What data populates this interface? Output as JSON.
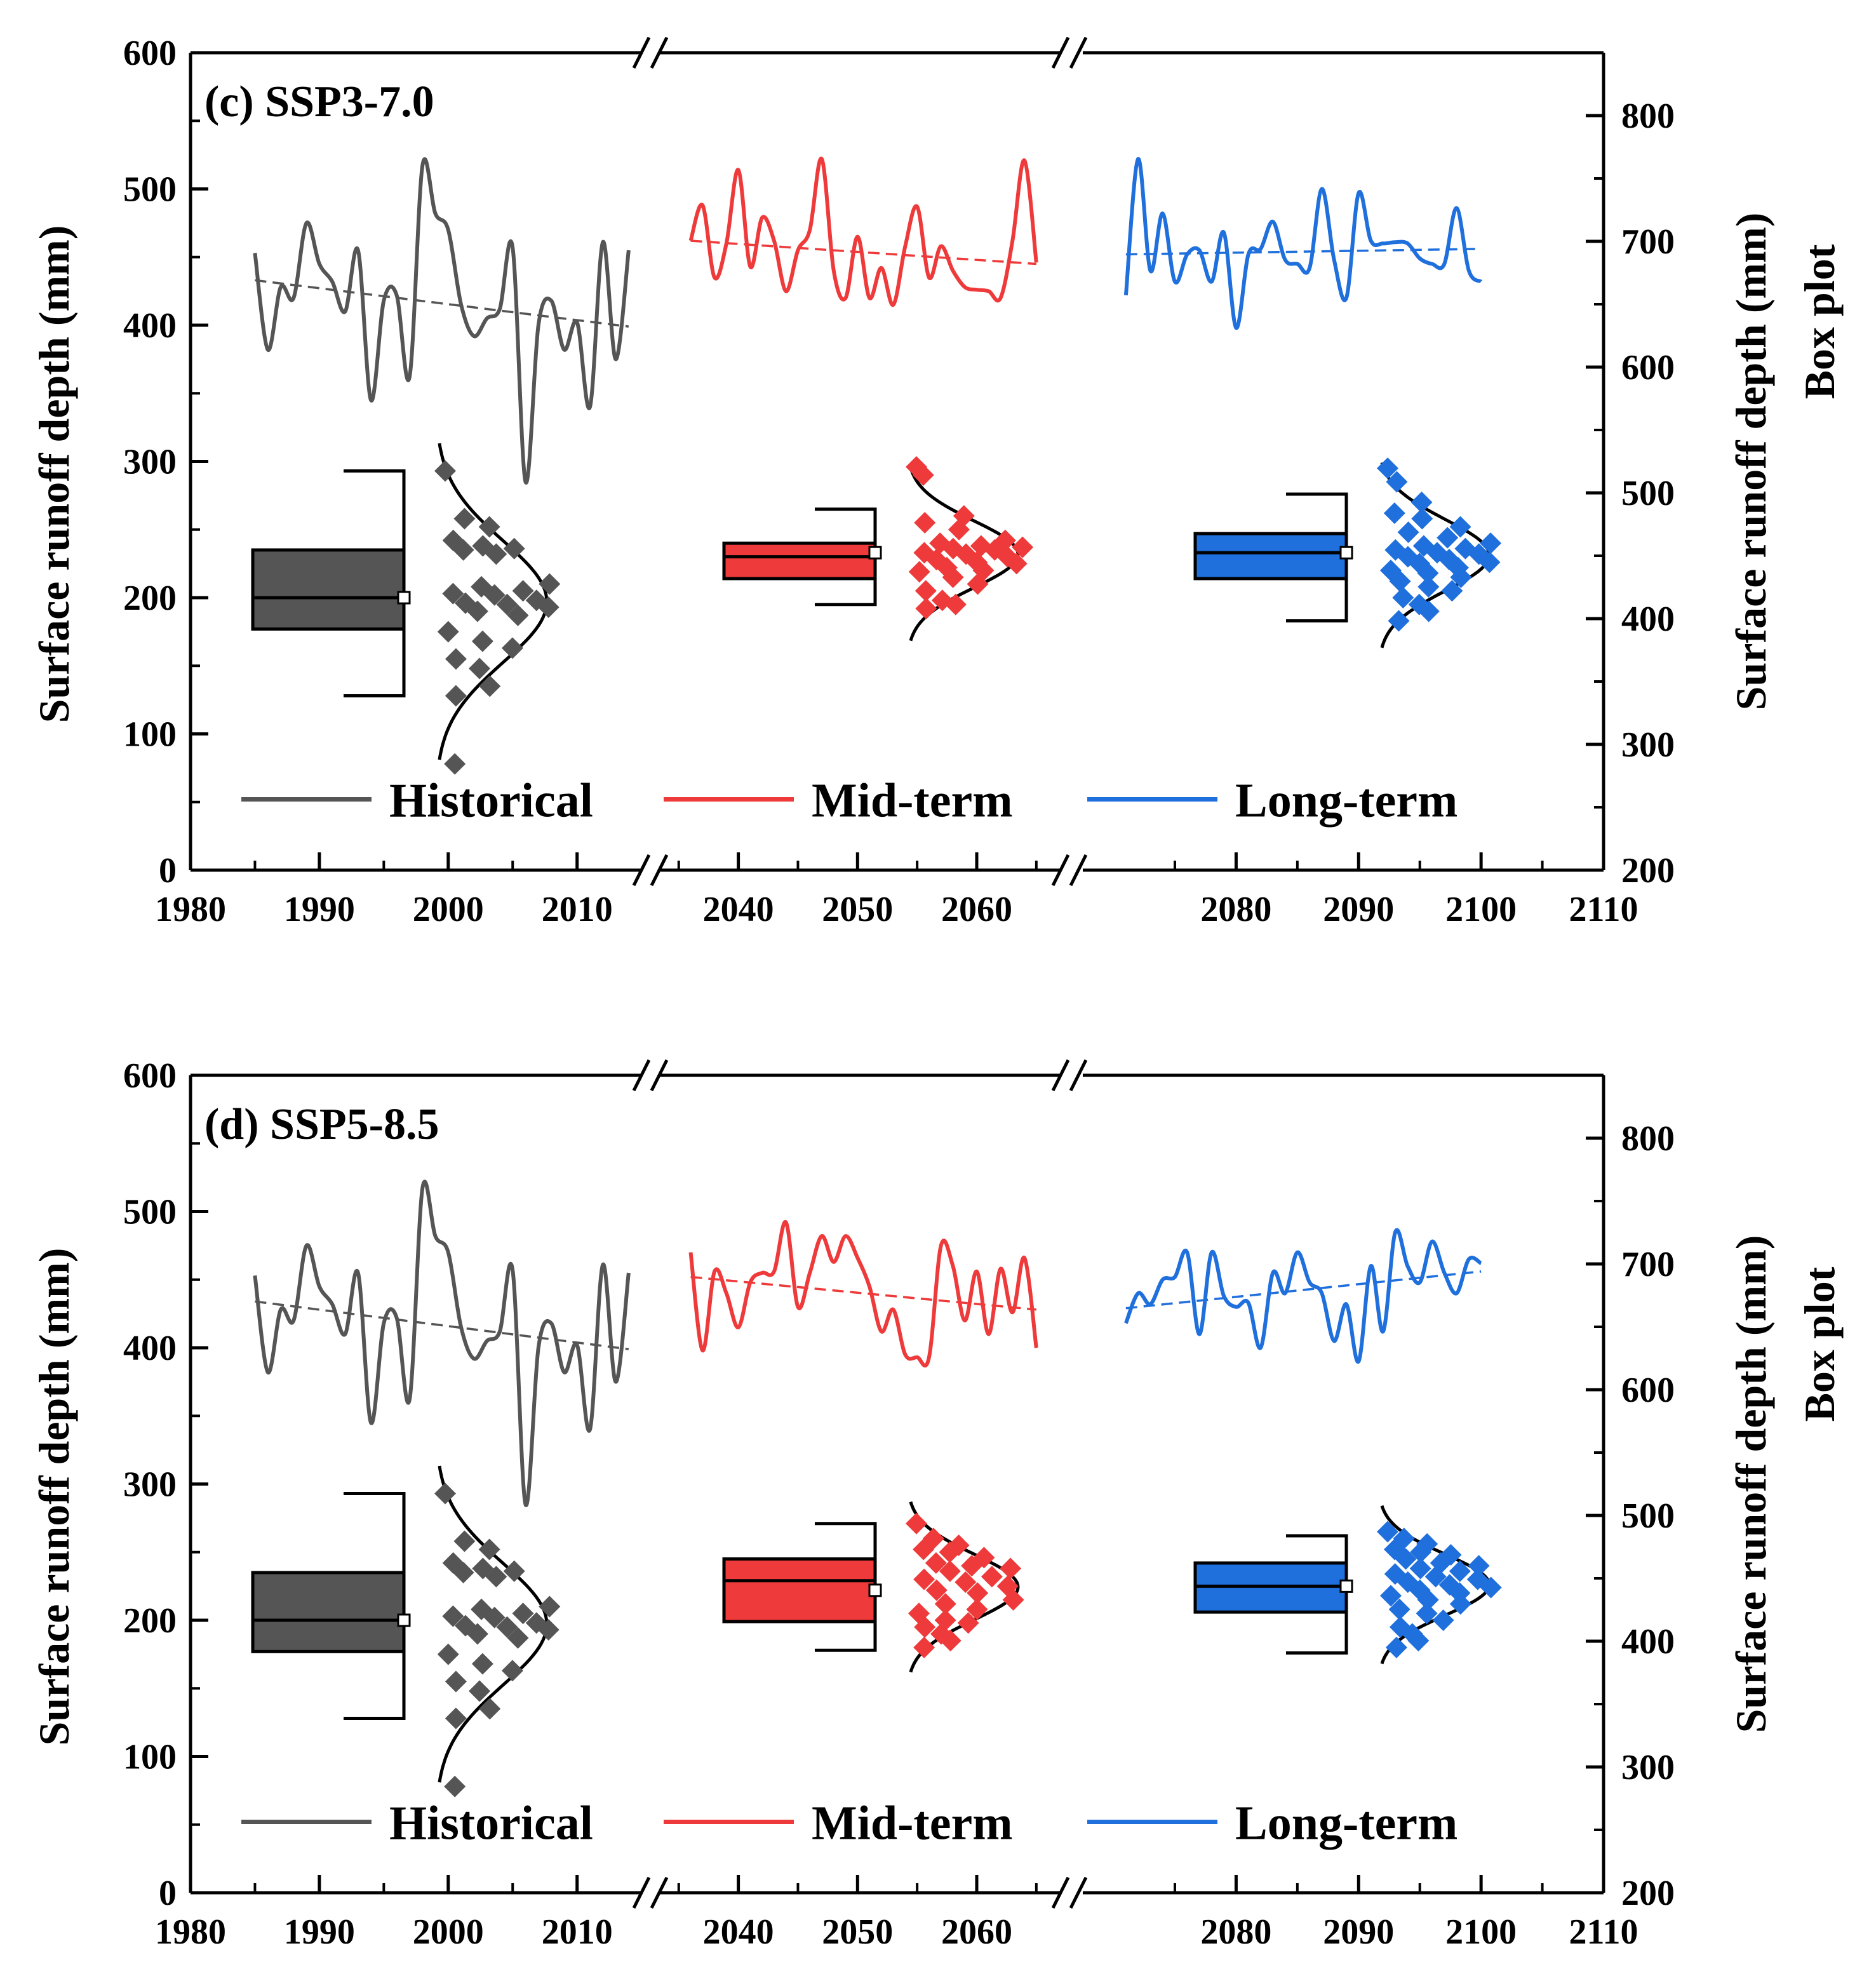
{
  "colors": {
    "Historical": "#555555",
    "Mid-term": "#EE3A3A",
    "Long-term": "#1F6FDC",
    "axis": "#000000"
  },
  "chart_data": [
    {
      "type": "line",
      "title": "(c) SSP3-7.0",
      "xlabel": "",
      "ylabel": "Surface runoff depth (mm)",
      "ylabel_right": "Surface runoff depth (mm)",
      "ylabel_right2": "Box plot",
      "ylim": [
        0,
        600
      ],
      "ylim_right": [
        200,
        850
      ],
      "y_ticks": [
        0,
        100,
        200,
        300,
        400,
        500,
        600
      ],
      "y_ticks_right": [
        200,
        300,
        400,
        500,
        600,
        700,
        800
      ],
      "x_ticks": [
        {
          "year": 1980,
          "label": "1980"
        },
        {
          "year": 1990,
          "label": "1990"
        },
        {
          "year": 2000,
          "label": "2000"
        },
        {
          "year": 2010,
          "label": "2010"
        },
        {
          "year": 2040,
          "label": "2040"
        },
        {
          "year": 2050,
          "label": "2050"
        },
        {
          "year": 2060,
          "label": "2060"
        },
        {
          "year": 2080,
          "label": "2080"
        },
        {
          "year": 2090,
          "label": "2090"
        },
        {
          "year": 2100,
          "label": "2100"
        },
        {
          "year": 2110,
          "label": "2110"
        }
      ],
      "legend": [
        "Historical",
        "Mid-term",
        "Long-term"
      ],
      "series": [
        {
          "name": "Historical",
          "x": [
            1985,
            1986,
            1987,
            1988,
            1989,
            1990,
            1991,
            1992,
            1993,
            1994,
            1995,
            1996,
            1997,
            1998,
            1999,
            2000,
            2001,
            2002,
            2003,
            2004,
            2005,
            2006,
            2007,
            2008,
            2009,
            2010,
            2011,
            2012,
            2013,
            2014
          ],
          "values": [
            453,
            382,
            428,
            420,
            475,
            445,
            432,
            410,
            455,
            345,
            418,
            422,
            362,
            517,
            482,
            470,
            415,
            392,
            405,
            412,
            457,
            285,
            400,
            418,
            382,
            402,
            340,
            461,
            375,
            455
          ],
          "trend": [
            433,
            399
          ]
        },
        {
          "name": "Mid-term",
          "x": [
            2036,
            2037,
            2038,
            2039,
            2040,
            2041,
            2042,
            2043,
            2044,
            2045,
            2046,
            2047,
            2048,
            2049,
            2050,
            2051,
            2052,
            2053,
            2054,
            2055,
            2056,
            2057,
            2058,
            2059,
            2060,
            2061,
            2062,
            2063,
            2064,
            2065
          ],
          "values": [
            462,
            488,
            435,
            460,
            514,
            443,
            479,
            462,
            425,
            455,
            470,
            522,
            440,
            420,
            465,
            420,
            442,
            415,
            458,
            487,
            435,
            458,
            440,
            428,
            426,
            425,
            420,
            462,
            521,
            446
          ],
          "trend": [
            462,
            445
          ]
        },
        {
          "name": "Long-term",
          "x": [
            2071,
            2072,
            2073,
            2074,
            2075,
            2076,
            2077,
            2078,
            2079,
            2080,
            2081,
            2082,
            2083,
            2084,
            2085,
            2086,
            2087,
            2088,
            2089,
            2090,
            2091,
            2092,
            2093,
            2094,
            2095,
            2096,
            2097,
            2098,
            2099,
            2100
          ],
          "values": [
            422,
            522,
            440,
            482,
            432,
            452,
            455,
            432,
            468,
            398,
            452,
            456,
            476,
            448,
            445,
            442,
            500,
            448,
            420,
            497,
            462,
            460,
            461,
            460,
            449,
            445,
            445,
            486,
            440,
            432
          ],
          "trend": [
            452,
            456
          ]
        }
      ],
      "box_plots": [
        {
          "name": "Historical",
          "whisker_low": 128,
          "q1": 177,
          "median": 200,
          "mean": 200,
          "q3": 235,
          "whisker_high": 293,
          "points": [
            293,
            258,
            252,
            242,
            238,
            236,
            235,
            232,
            210,
            208,
            205,
            203,
            202,
            198,
            196,
            195,
            193,
            190,
            187,
            175,
            168,
            163,
            155,
            148,
            135,
            128,
            78
          ]
        },
        {
          "name": "Mid-term",
          "whisker_low": 195,
          "q1": 214,
          "median": 230,
          "mean": 233,
          "q3": 240,
          "whisker_high": 265,
          "points": [
            296,
            290,
            260,
            255,
            250,
            242,
            240,
            238,
            237,
            236,
            235,
            233,
            232,
            230,
            228,
            226,
            225,
            222,
            220,
            219,
            215,
            210,
            205,
            198,
            195,
            192
          ]
        },
        {
          "name": "Long-term",
          "whisker_low": 183,
          "q1": 214,
          "median": 233,
          "mean": 233,
          "q3": 247,
          "whisker_high": 276,
          "points": [
            295,
            285,
            270,
            262,
            258,
            252,
            248,
            244,
            240,
            238,
            236,
            235,
            233,
            232,
            230,
            228,
            226,
            225,
            222,
            220,
            218,
            215,
            212,
            208,
            205,
            200,
            195,
            190,
            183
          ]
        }
      ]
    },
    {
      "type": "line",
      "title": "(d) SSP5-8.5",
      "xlabel": "",
      "ylabel": "Surface runoff depth (mm)",
      "ylabel_right": "Surface runoff depth (mm)",
      "ylabel_right2": "Box plot",
      "ylim": [
        0,
        600
      ],
      "ylim_right": [
        200,
        850
      ],
      "y_ticks": [
        0,
        100,
        200,
        300,
        400,
        500,
        600
      ],
      "y_ticks_right": [
        200,
        300,
        400,
        500,
        600,
        700,
        800
      ],
      "x_ticks": [
        {
          "year": 1980,
          "label": "1980"
        },
        {
          "year": 1990,
          "label": "1990"
        },
        {
          "year": 2000,
          "label": "2000"
        },
        {
          "year": 2010,
          "label": "2010"
        },
        {
          "year": 2040,
          "label": "2040"
        },
        {
          "year": 2050,
          "label": "2050"
        },
        {
          "year": 2060,
          "label": "2060"
        },
        {
          "year": 2080,
          "label": "2080"
        },
        {
          "year": 2090,
          "label": "2090"
        },
        {
          "year": 2100,
          "label": "2100"
        },
        {
          "year": 2110,
          "label": "2110"
        }
      ],
      "legend": [
        "Historical",
        "Mid-term",
        "Long-term"
      ],
      "series": [
        {
          "name": "Historical",
          "x": [
            1985,
            1986,
            1987,
            1988,
            1989,
            1990,
            1991,
            1992,
            1993,
            1994,
            1995,
            1996,
            1997,
            1998,
            1999,
            2000,
            2001,
            2002,
            2003,
            2004,
            2005,
            2006,
            2007,
            2008,
            2009,
            2010,
            2011,
            2012,
            2013,
            2014
          ],
          "values": [
            453,
            382,
            428,
            420,
            475,
            445,
            432,
            410,
            455,
            345,
            418,
            422,
            362,
            517,
            482,
            470,
            415,
            392,
            405,
            412,
            457,
            285,
            400,
            418,
            382,
            402,
            340,
            461,
            375,
            455
          ],
          "trend": [
            434,
            399
          ]
        },
        {
          "name": "Mid-term",
          "x": [
            2036,
            2037,
            2038,
            2039,
            2040,
            2041,
            2042,
            2043,
            2044,
            2045,
            2046,
            2047,
            2048,
            2049,
            2050,
            2051,
            2052,
            2053,
            2054,
            2055,
            2056,
            2057,
            2058,
            2059,
            2060,
            2061,
            2062,
            2063,
            2064,
            2065
          ],
          "values": [
            470,
            398,
            456,
            440,
            415,
            448,
            455,
            456,
            492,
            430,
            455,
            482,
            463,
            482,
            466,
            445,
            412,
            428,
            395,
            393,
            393,
            475,
            460,
            420,
            456,
            410,
            458,
            426,
            466,
            400
          ],
          "trend": [
            452,
            428
          ]
        },
        {
          "name": "Long-term",
          "x": [
            2071,
            2072,
            2073,
            2074,
            2075,
            2076,
            2077,
            2078,
            2079,
            2080,
            2081,
            2082,
            2083,
            2084,
            2085,
            2086,
            2087,
            2088,
            2089,
            2090,
            2091,
            2092,
            2093,
            2094,
            2095,
            2096,
            2097,
            2098,
            2099,
            2100
          ],
          "values": [
            418,
            440,
            432,
            450,
            452,
            470,
            410,
            470,
            438,
            430,
            433,
            400,
            455,
            440,
            470,
            448,
            440,
            405,
            432,
            390,
            460,
            412,
            485,
            460,
            448,
            478,
            455,
            440,
            465,
            462
          ],
          "trend": [
            429,
            456
          ]
        }
      ],
      "box_plots": [
        {
          "name": "Historical",
          "whisker_low": 128,
          "q1": 177,
          "median": 200,
          "mean": 200,
          "q3": 235,
          "whisker_high": 293,
          "points": [
            293,
            258,
            252,
            242,
            238,
            236,
            235,
            232,
            210,
            208,
            205,
            203,
            202,
            198,
            196,
            195,
            193,
            190,
            187,
            175,
            168,
            163,
            155,
            148,
            135,
            128,
            78
          ]
        },
        {
          "name": "Mid-term",
          "whisker_low": 178,
          "q1": 199,
          "median": 229,
          "mean": 222,
          "q3": 245,
          "whisker_high": 271,
          "points": [
            271,
            260,
            255,
            252,
            250,
            246,
            242,
            240,
            238,
            236,
            232,
            230,
            228,
            225,
            222,
            220,
            215,
            212,
            208,
            205,
            200,
            198,
            195,
            190,
            185,
            180
          ]
        },
        {
          "name": "Long-term",
          "whisker_low": 176,
          "q1": 206,
          "median": 225,
          "mean": 225,
          "q3": 242,
          "whisker_high": 262,
          "points": [
            265,
            260,
            256,
            252,
            250,
            248,
            245,
            242,
            240,
            238,
            236,
            234,
            232,
            230,
            228,
            226,
            224,
            222,
            220,
            218,
            215,
            212,
            208,
            205,
            200,
            195,
            190,
            185,
            180
          ]
        }
      ]
    }
  ]
}
